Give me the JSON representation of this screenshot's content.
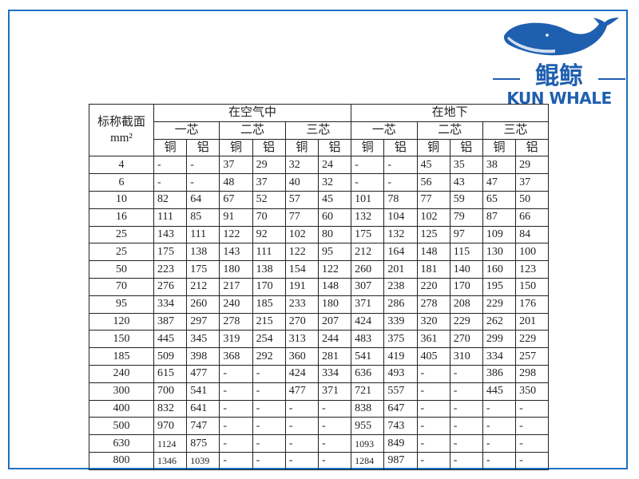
{
  "logo": {
    "chinese": "鲲鲸",
    "english": "KUN WHALE",
    "brand_color": "#1f5fb0"
  },
  "table": {
    "header": {
      "section_label": "标称截面",
      "unit": "mm²",
      "groups": [
        "在空气中",
        "在地下"
      ],
      "cores": [
        "一芯",
        "二芯",
        "三芯",
        "一芯",
        "二芯",
        "三芯"
      ],
      "materials": [
        "铜",
        "铝",
        "铜",
        "铝",
        "铜",
        "铝",
        "铜",
        "铝",
        "铜",
        "铝",
        "铜",
        "铝"
      ]
    },
    "rows": [
      [
        "4",
        "-",
        "-",
        "37",
        "29",
        "32",
        "24",
        "-",
        "-",
        "45",
        "35",
        "38",
        "29"
      ],
      [
        "6",
        "-",
        "-",
        "48",
        "37",
        "40",
        "32",
        "-",
        "-",
        "56",
        "43",
        "47",
        "37"
      ],
      [
        "10",
        "82",
        "64",
        "67",
        "52",
        "57",
        "45",
        "101",
        "78",
        "77",
        "59",
        "65",
        "50"
      ],
      [
        "16",
        "111",
        "85",
        "91",
        "70",
        "77",
        "60",
        "132",
        "104",
        "102",
        "79",
        "87",
        "66"
      ],
      [
        "25",
        "143",
        "111",
        "122",
        "92",
        "102",
        "80",
        "175",
        "132",
        "125",
        "97",
        "109",
        "84"
      ],
      [
        "25",
        "175",
        "138",
        "143",
        "111",
        "122",
        "95",
        "212",
        "164",
        "148",
        "115",
        "130",
        "100"
      ],
      [
        "50",
        "223",
        "175",
        "180",
        "138",
        "154",
        "122",
        "260",
        "201",
        "181",
        "140",
        "160",
        "123"
      ],
      [
        "70",
        "276",
        "212",
        "217",
        "170",
        "191",
        "148",
        "307",
        "238",
        "220",
        "170",
        "195",
        "150"
      ],
      [
        "95",
        "334",
        "260",
        "240",
        "185",
        "233",
        "180",
        "371",
        "286",
        "278",
        "208",
        "229",
        "176"
      ],
      [
        "120",
        "387",
        "297",
        "278",
        "215",
        "270",
        "207",
        "424",
        "339",
        "320",
        "229",
        "262",
        "201"
      ],
      [
        "150",
        "445",
        "345",
        "319",
        "254",
        "313",
        "244",
        "483",
        "375",
        "361",
        "270",
        "299",
        "229"
      ],
      [
        "185",
        "509",
        "398",
        "368",
        "292",
        "360",
        "281",
        "541",
        "419",
        "405",
        "310",
        "334",
        "257"
      ],
      [
        "240",
        "615",
        "477",
        "-",
        "-",
        "424",
        "334",
        "636",
        "493",
        "-",
        "-",
        "386",
        "298"
      ],
      [
        "300",
        "700",
        "541",
        "-",
        "-",
        "477",
        "371",
        "721",
        "557",
        "-",
        "-",
        "445",
        "350"
      ],
      [
        "400",
        "832",
        "641",
        "-",
        "-",
        "-",
        "-",
        "838",
        "647",
        "-",
        "-",
        "-",
        "-"
      ],
      [
        "500",
        "970",
        "747",
        "-",
        "-",
        "-",
        "-",
        "955",
        "743",
        "-",
        "-",
        "-",
        "-"
      ],
      [
        "630",
        "1124",
        "875",
        "-",
        "-",
        "-",
        "-",
        "1093",
        "849",
        "-",
        "-",
        "-",
        "-"
      ],
      [
        "800",
        "1346",
        "1039",
        "-",
        "-",
        "-",
        "-",
        "1284",
        "987",
        "-",
        "-",
        "-",
        "-"
      ]
    ]
  }
}
